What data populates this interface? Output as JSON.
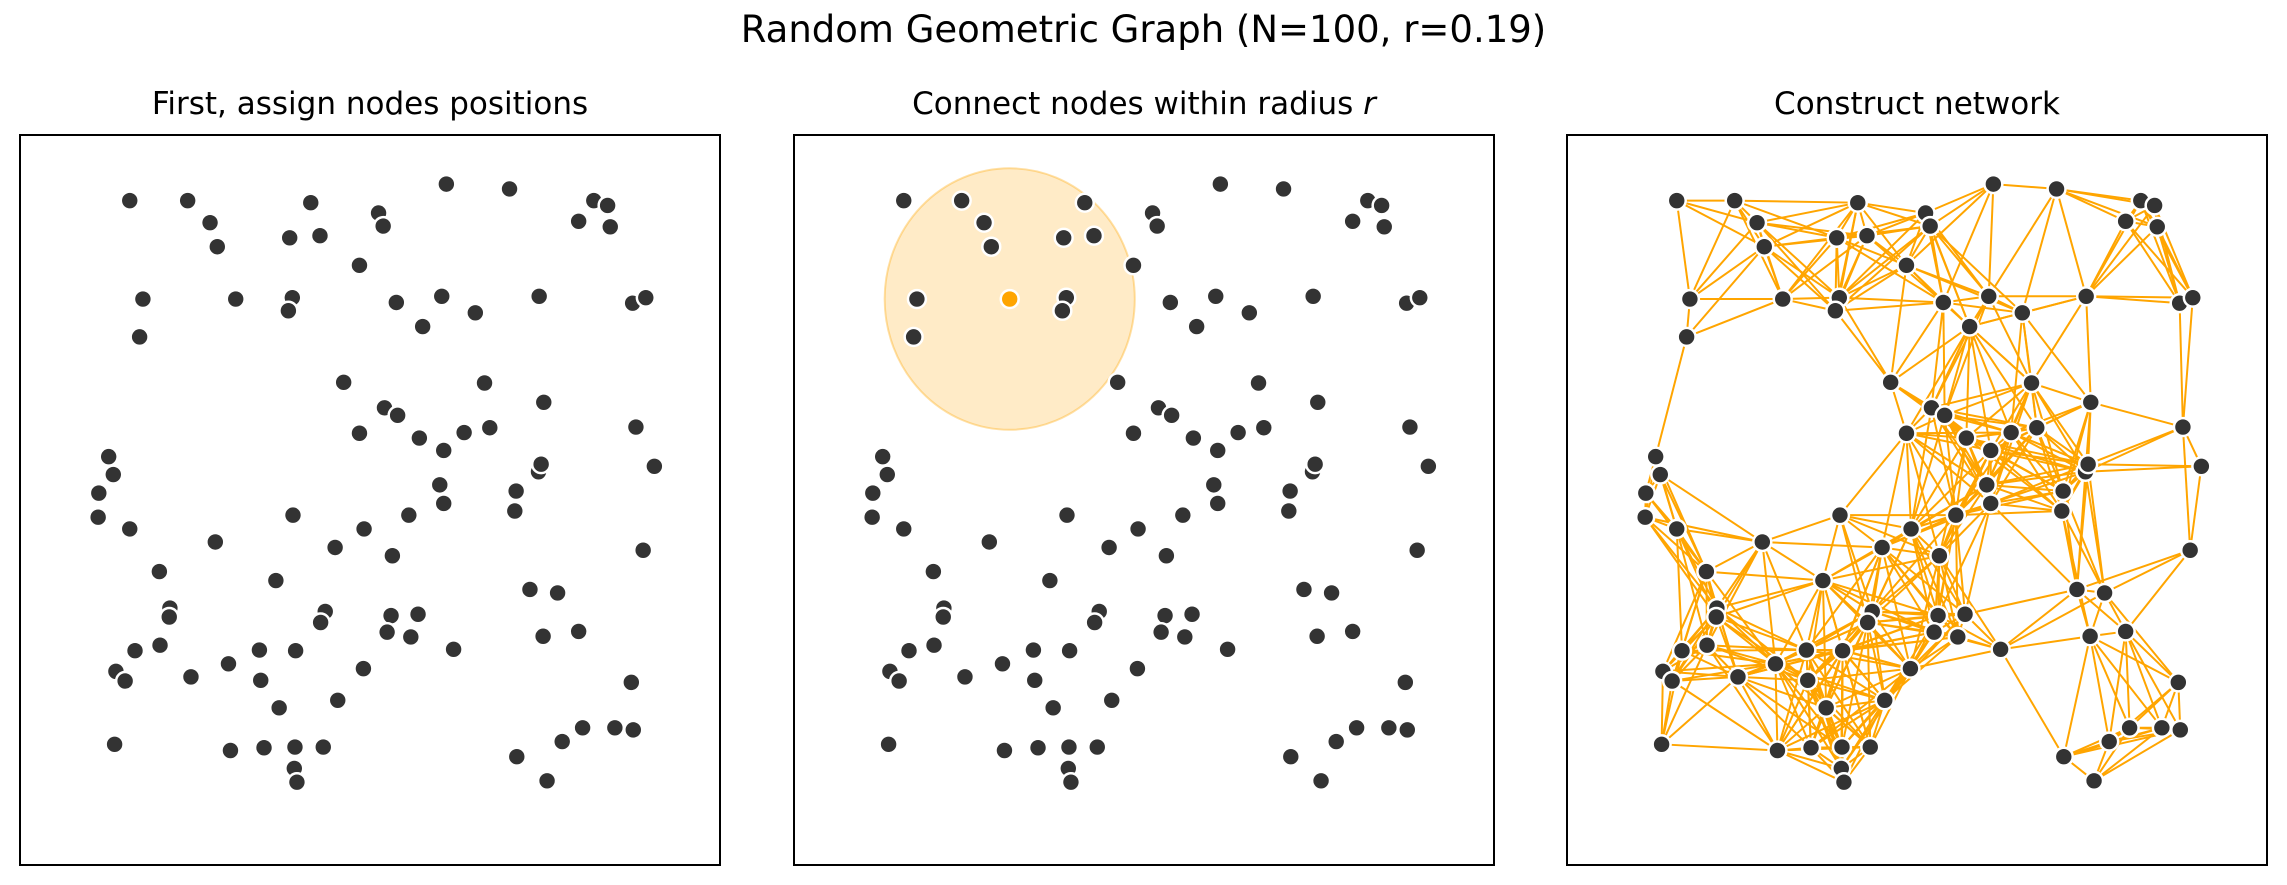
{
  "figure": {
    "title": "Random Geometric Graph (N=100, r=0.19)"
  },
  "panels": [
    {
      "title": "First, assign nodes positions"
    },
    {
      "title_prefix": "Connect nodes within radius ",
      "title_var": "r"
    },
    {
      "title": "Construct network"
    }
  ],
  "graph": {
    "n": 100,
    "radius": 0.19,
    "focus_node_index": 18,
    "colors": {
      "node_fill": "#333333",
      "node_edge": "#ffffff",
      "focus_node": "#ffa500",
      "radius_disk": "#ffa500",
      "edges": "#ffa500"
    },
    "nodes": [
      [
        0.135,
        0.935
      ],
      [
        0.223,
        0.935
      ],
      [
        0.257,
        0.903
      ],
      [
        0.268,
        0.868
      ],
      [
        0.41,
        0.932
      ],
      [
        0.513,
        0.917
      ],
      [
        0.52,
        0.898
      ],
      [
        0.616,
        0.959
      ],
      [
        0.712,
        0.952
      ],
      [
        0.84,
        0.935
      ],
      [
        0.861,
        0.928
      ],
      [
        0.817,
        0.905
      ],
      [
        0.865,
        0.897
      ],
      [
        0.378,
        0.881
      ],
      [
        0.424,
        0.884
      ],
      [
        0.484,
        0.841
      ],
      [
        0.155,
        0.792
      ],
      [
        0.15,
        0.737
      ],
      [
        0.296,
        0.792
      ],
      [
        0.382,
        0.794
      ],
      [
        0.376,
        0.775
      ],
      [
        0.54,
        0.787
      ],
      [
        0.609,
        0.796
      ],
      [
        0.66,
        0.772
      ],
      [
        0.757,
        0.796
      ],
      [
        0.899,
        0.786
      ],
      [
        0.919,
        0.794
      ],
      [
        0.58,
        0.752
      ],
      [
        0.46,
        0.671
      ],
      [
        0.522,
        0.634
      ],
      [
        0.542,
        0.623
      ],
      [
        0.484,
        0.597
      ],
      [
        0.575,
        0.59
      ],
      [
        0.612,
        0.572
      ],
      [
        0.643,
        0.598
      ],
      [
        0.682,
        0.605
      ],
      [
        0.674,
        0.67
      ],
      [
        0.764,
        0.642
      ],
      [
        0.904,
        0.606
      ],
      [
        0.932,
        0.549
      ],
      [
        0.103,
        0.563
      ],
      [
        0.11,
        0.537
      ],
      [
        0.088,
        0.51
      ],
      [
        0.087,
        0.475
      ],
      [
        0.135,
        0.458
      ],
      [
        0.18,
        0.396
      ],
      [
        0.265,
        0.439
      ],
      [
        0.383,
        0.478
      ],
      [
        0.447,
        0.431
      ],
      [
        0.491,
        0.458
      ],
      [
        0.559,
        0.478
      ],
      [
        0.534,
        0.419
      ],
      [
        0.606,
        0.522
      ],
      [
        0.612,
        0.495
      ],
      [
        0.722,
        0.513
      ],
      [
        0.756,
        0.541
      ],
      [
        0.76,
        0.552
      ],
      [
        0.72,
        0.484
      ],
      [
        0.915,
        0.427
      ],
      [
        0.196,
        0.343
      ],
      [
        0.195,
        0.33
      ],
      [
        0.143,
        0.281
      ],
      [
        0.181,
        0.289
      ],
      [
        0.357,
        0.383
      ],
      [
        0.432,
        0.338
      ],
      [
        0.425,
        0.322
      ],
      [
        0.387,
        0.282
      ],
      [
        0.532,
        0.332
      ],
      [
        0.573,
        0.334
      ],
      [
        0.526,
        0.308
      ],
      [
        0.562,
        0.301
      ],
      [
        0.627,
        0.283
      ],
      [
        0.743,
        0.37
      ],
      [
        0.785,
        0.365
      ],
      [
        0.763,
        0.302
      ],
      [
        0.817,
        0.309
      ],
      [
        0.897,
        0.235
      ],
      [
        0.114,
        0.251
      ],
      [
        0.128,
        0.237
      ],
      [
        0.228,
        0.243
      ],
      [
        0.285,
        0.262
      ],
      [
        0.332,
        0.282
      ],
      [
        0.334,
        0.238
      ],
      [
        0.362,
        0.198
      ],
      [
        0.387,
        0.281
      ],
      [
        0.451,
        0.209
      ],
      [
        0.49,
        0.255
      ],
      [
        0.339,
        0.14
      ],
      [
        0.386,
        0.141
      ],
      [
        0.429,
        0.141
      ],
      [
        0.112,
        0.145
      ],
      [
        0.288,
        0.136
      ],
      [
        0.385,
        0.11
      ],
      [
        0.389,
        0.09
      ],
      [
        0.769,
        0.092
      ],
      [
        0.792,
        0.149
      ],
      [
        0.823,
        0.169
      ],
      [
        0.872,
        0.169
      ],
      [
        0.9,
        0.166
      ],
      [
        0.723,
        0.127
      ]
    ]
  }
}
